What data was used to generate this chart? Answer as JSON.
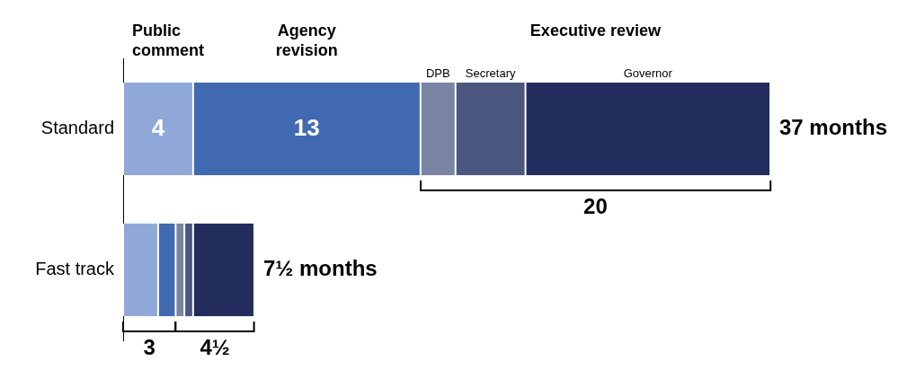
{
  "chart_data": {
    "type": "bar",
    "orientation": "horizontal",
    "stacked": true,
    "categories": [
      "Standard",
      "Fast track"
    ],
    "series": [
      {
        "name": "Public comment",
        "color": "#8fa8d8",
        "values": [
          4,
          2
        ],
        "value_labels": [
          "4",
          null
        ]
      },
      {
        "name": "Agency revision",
        "color": "#4169b0",
        "values": [
          13,
          1
        ],
        "value_labels": [
          "13",
          null
        ]
      },
      {
        "name": "DPB",
        "color": "#7a84a3",
        "values": [
          2,
          0.5
        ]
      },
      {
        "name": "Secretary",
        "color": "#4b577f",
        "values": [
          4,
          0.5
        ]
      },
      {
        "name": "Governor",
        "color": "#222d5e",
        "values": [
          14,
          3.5
        ]
      }
    ],
    "totals": [
      "37 months",
      "7½ months"
    ],
    "annotations": [
      "Executive review",
      "20",
      "3",
      "4½"
    ],
    "grid": false,
    "legend": false
  }
}
